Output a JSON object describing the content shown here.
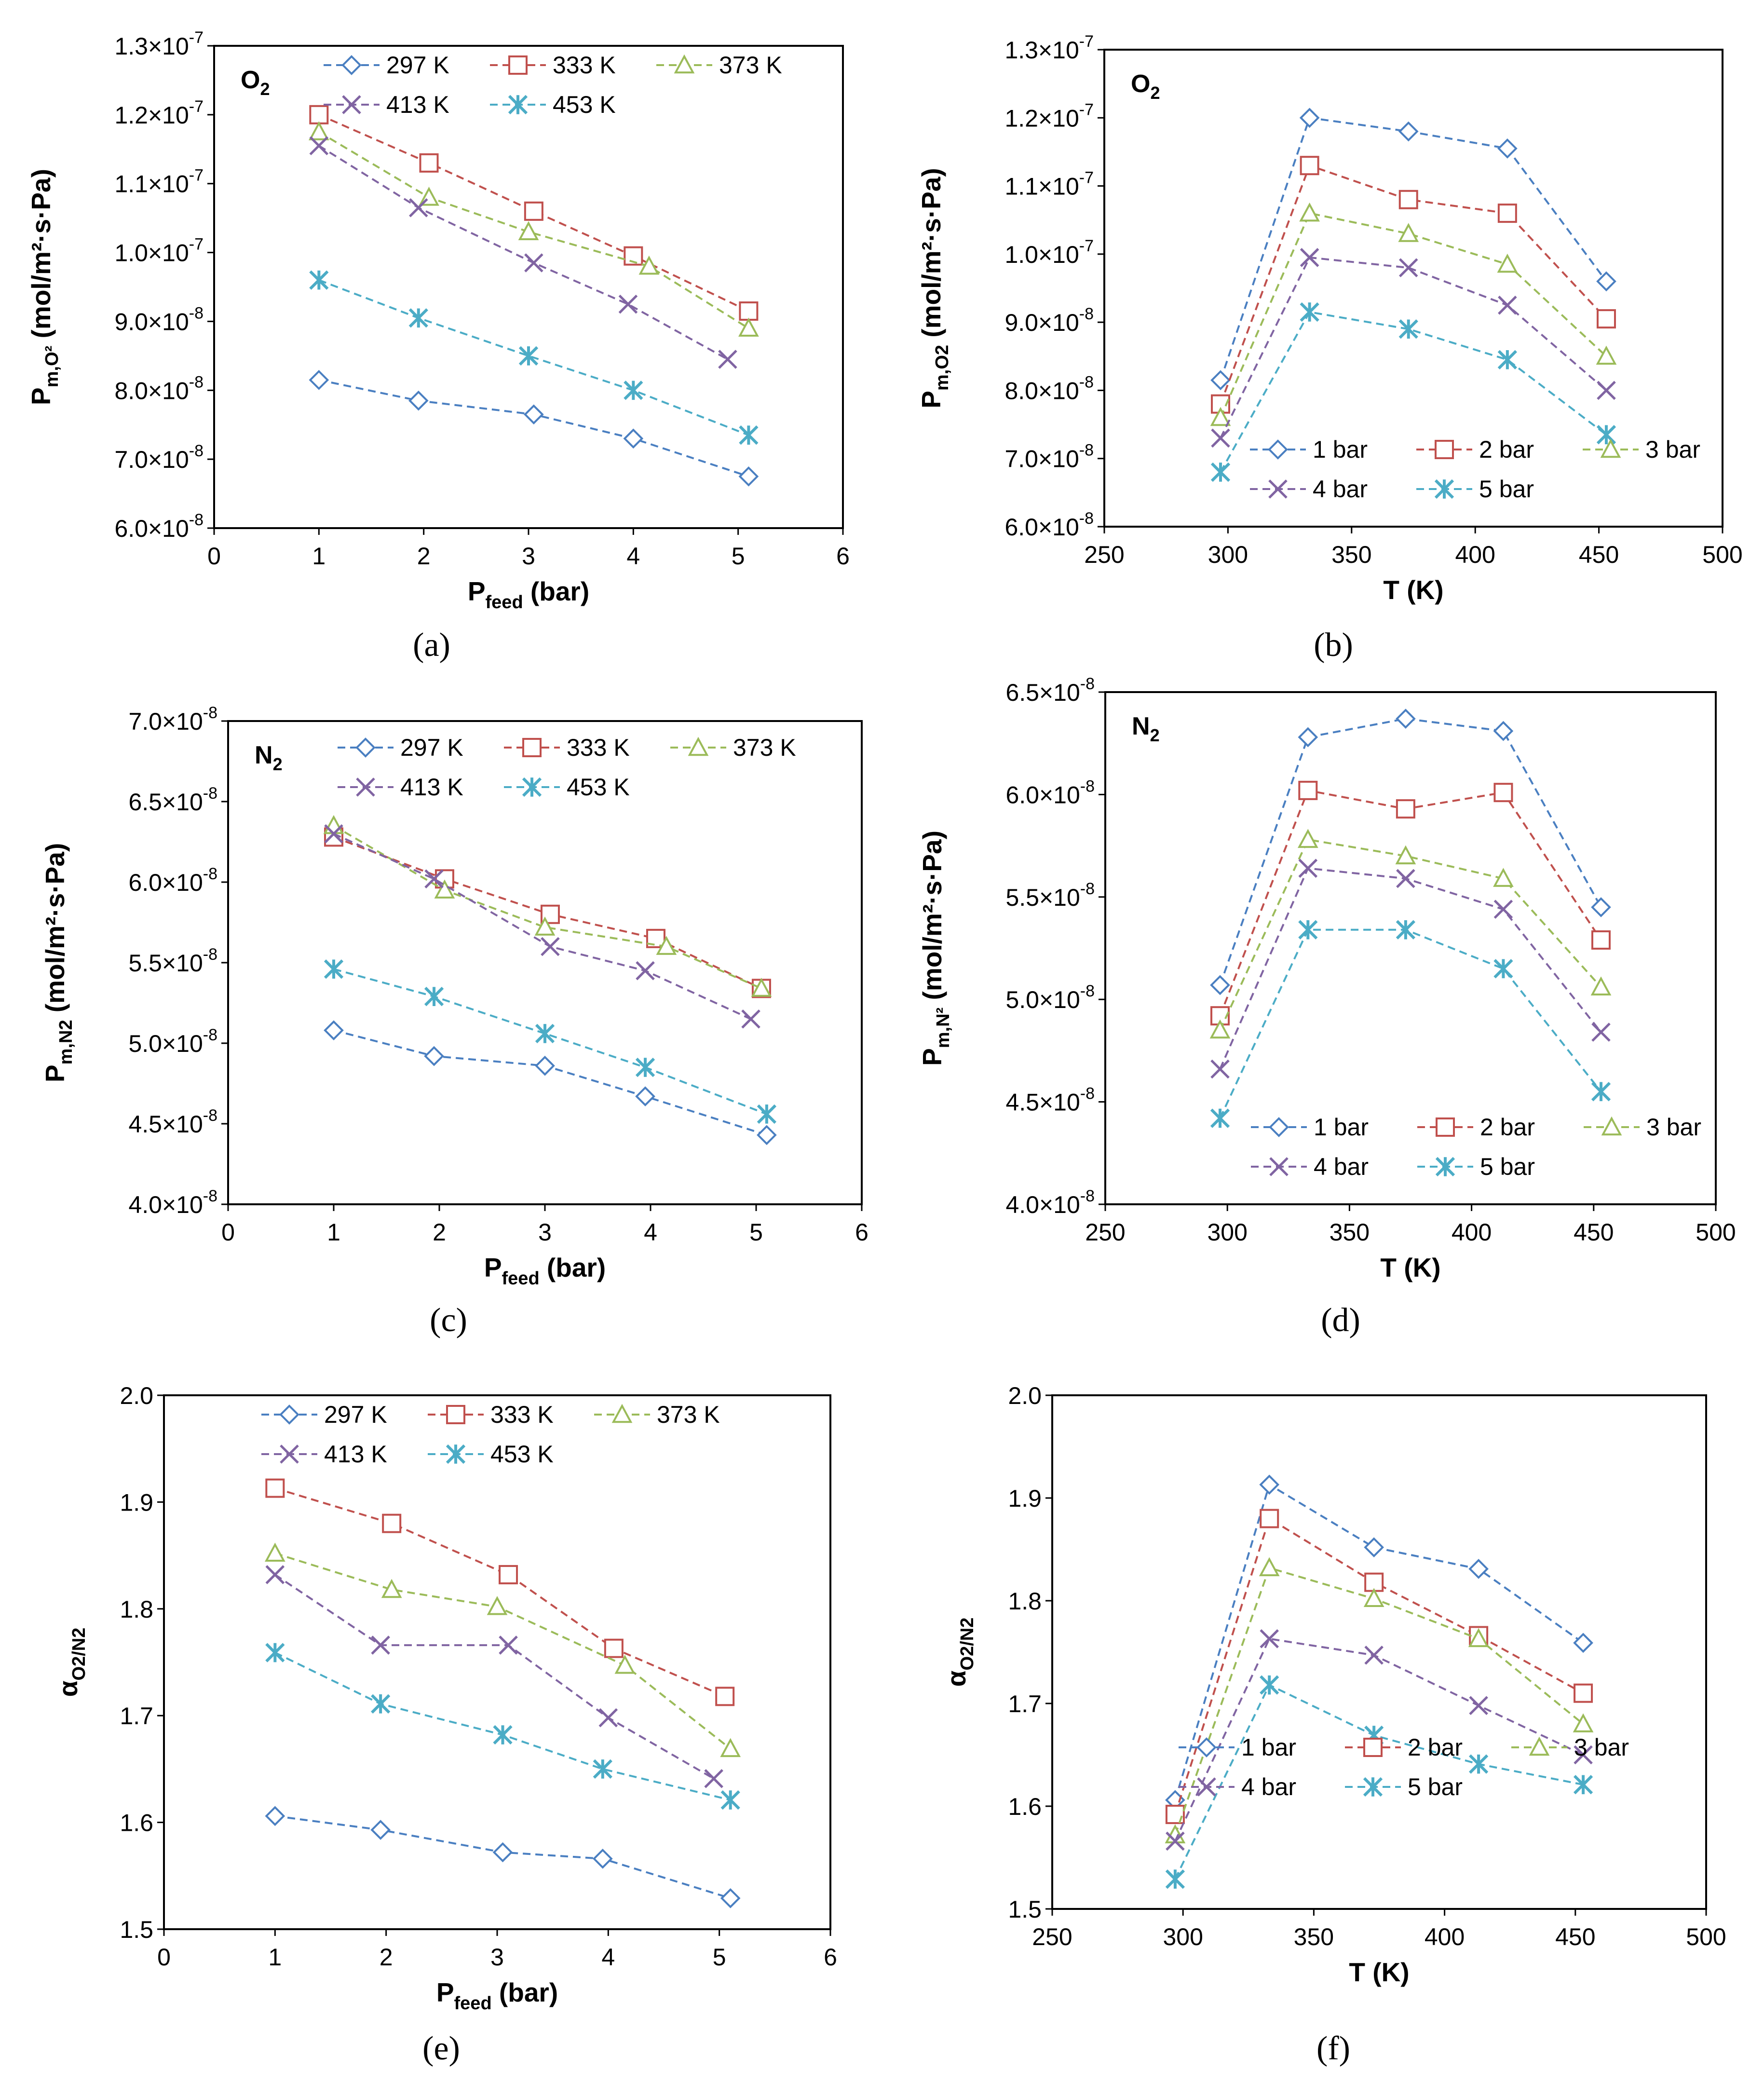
{
  "figure": {
    "panels": [
      {
        "caption": "(a)",
        "corner_label": "O",
        "corner_sub": "2",
        "xlabel_main": "P",
        "xlabel_sub": "feed",
        "xlabel_tail": " (bar)",
        "ylabel_main": "P",
        "ylabel_sub": "m,O²",
        "ylabel_tail": " (mol/m²·s·Pa)"
      },
      {
        "caption": "(b)",
        "corner_label": "O",
        "corner_sub": "2",
        "xlabel_main": "T (K)",
        "xlabel_sub": "",
        "xlabel_tail": "",
        "ylabel_main": "P",
        "ylabel_sub": "m,O2",
        "ylabel_tail": " (mol/m²·s·Pa)"
      },
      {
        "caption": "(c)",
        "corner_label": "N",
        "corner_sub": "2",
        "xlabel_main": "P",
        "xlabel_sub": "feed",
        "xlabel_tail": " (bar)",
        "ylabel_main": "P",
        "ylabel_sub": "m,N2",
        "ylabel_tail": " (mol/m²·s·Pa)"
      },
      {
        "caption": "(d)",
        "corner_label": "N",
        "corner_sub": "2",
        "xlabel_main": "T (K)",
        "xlabel_sub": "",
        "xlabel_tail": "",
        "ylabel_main": "P",
        "ylabel_sub": "m,N²",
        "ylabel_tail": " (mol/m²·s·Pa)"
      },
      {
        "caption": "(e)",
        "corner_label": "",
        "corner_sub": "",
        "xlabel_main": "P",
        "xlabel_sub": "feed",
        "xlabel_tail": " (bar)",
        "ylabel_main": "α",
        "ylabel_sub": "O2/N2",
        "ylabel_tail": ""
      },
      {
        "caption": "(f)",
        "corner_label": "",
        "corner_sub": "",
        "xlabel_main": "T (K)",
        "xlabel_sub": "",
        "xlabel_tail": "",
        "ylabel_main": "α",
        "ylabel_sub": "O2/N2",
        "ylabel_tail": ""
      }
    ]
  },
  "series_styles": {
    "colors": [
      "#4a7fc1",
      "#c0504d",
      "#9bbb59",
      "#8064a2",
      "#4bacc6"
    ],
    "markers": [
      "diamond",
      "square",
      "triangle",
      "x",
      "asterisk"
    ]
  },
  "chart_data": [
    {
      "type": "line",
      "title": "O2",
      "xlabel": "Pfeed (bar)",
      "ylabel": "Pm,O2 (mol/m²·s·Pa)",
      "xlim": [
        0,
        6
      ],
      "ylim": [
        6e-08,
        1.3e-07
      ],
      "xticks": [
        "0",
        "1",
        "2",
        "3",
        "4",
        "5",
        "6"
      ],
      "yticks": [
        {
          "mant": "6.0×10",
          "exp": "-8"
        },
        {
          "mant": "7.0×10",
          "exp": "-8"
        },
        {
          "mant": "8.0×10",
          "exp": "-8"
        },
        {
          "mant": "9.0×10",
          "exp": "-8"
        },
        {
          "mant": "1.0×10",
          "exp": "-7"
        },
        {
          "mant": "1.1×10",
          "exp": "-7"
        },
        {
          "mant": "1.2×10",
          "exp": "-7"
        },
        {
          "mant": "1.3×10",
          "exp": "-7"
        }
      ],
      "legend_position": "top",
      "series": [
        {
          "name": "297 K",
          "x": [
            1,
            1.95,
            3.05,
            4,
            5.1
          ],
          "values": [
            8.15e-08,
            7.85e-08,
            7.65e-08,
            7.3e-08,
            6.75e-08
          ]
        },
        {
          "name": "333 K",
          "x": [
            1,
            2.05,
            3.05,
            4,
            5.1
          ],
          "values": [
            1.2e-07,
            1.13e-07,
            1.06e-07,
            9.95e-08,
            9.15e-08
          ]
        },
        {
          "name": "373 K",
          "x": [
            1,
            2.05,
            3,
            4.15,
            5.1
          ],
          "values": [
            1.175e-07,
            1.08e-07,
            1.03e-07,
            9.8e-08,
            8.9e-08
          ]
        },
        {
          "name": "413 K",
          "x": [
            1,
            1.95,
            3.05,
            3.95,
            4.9
          ],
          "values": [
            1.155e-07,
            1.065e-07,
            9.85e-08,
            9.25e-08,
            8.45e-08
          ]
        },
        {
          "name": "453 K",
          "x": [
            1,
            1.95,
            3,
            4,
            5.1
          ],
          "values": [
            9.6e-08,
            9.05e-08,
            8.5e-08,
            8e-08,
            7.35e-08
          ]
        }
      ]
    },
    {
      "type": "line",
      "title": "O2",
      "xlabel": "T (K)",
      "ylabel": "Pm,O2 (mol/m²·s·Pa)",
      "xlim": [
        250,
        500
      ],
      "ylim": [
        6e-08,
        1.3e-07
      ],
      "xticks": [
        "250",
        "300",
        "350",
        "400",
        "450",
        "500"
      ],
      "yticks": [
        {
          "mant": "6.0×10",
          "exp": "-8"
        },
        {
          "mant": "7.0×10",
          "exp": "-8"
        },
        {
          "mant": "8.0×10",
          "exp": "-8"
        },
        {
          "mant": "9.0×10",
          "exp": "-8"
        },
        {
          "mant": "1.0×10",
          "exp": "-7"
        },
        {
          "mant": "1.1×10",
          "exp": "-7"
        },
        {
          "mant": "1.2×10",
          "exp": "-7"
        },
        {
          "mant": "1.3×10",
          "exp": "-7"
        }
      ],
      "legend_position": "bottom",
      "series": [
        {
          "name": "1 bar",
          "x": [
            297,
            333,
            373,
            413,
            453
          ],
          "values": [
            8.15e-08,
            1.2e-07,
            1.18e-07,
            1.155e-07,
            9.6e-08
          ]
        },
        {
          "name": "2 bar",
          "x": [
            297,
            333,
            373,
            413,
            453
          ],
          "values": [
            7.8e-08,
            1.13e-07,
            1.08e-07,
            1.06e-07,
            9.05e-08
          ]
        },
        {
          "name": "3 bar",
          "x": [
            297,
            333,
            373,
            413,
            453
          ],
          "values": [
            7.6e-08,
            1.06e-07,
            1.03e-07,
            9.85e-08,
            8.5e-08
          ]
        },
        {
          "name": "4 bar",
          "x": [
            297,
            333,
            373,
            413,
            453
          ],
          "values": [
            7.3e-08,
            9.95e-08,
            9.8e-08,
            9.25e-08,
            8e-08
          ]
        },
        {
          "name": "5 bar",
          "x": [
            297,
            333,
            373,
            413,
            453
          ],
          "values": [
            6.8e-08,
            9.15e-08,
            8.9e-08,
            8.45e-08,
            7.35e-08
          ]
        }
      ]
    },
    {
      "type": "line",
      "title": "N2",
      "xlabel": "Pfeed (bar)",
      "ylabel": "Pm,N2 (mol/m²·s·Pa)",
      "xlim": [
        0,
        6
      ],
      "ylim": [
        4e-08,
        7e-08
      ],
      "xticks": [
        "0",
        "1",
        "2",
        "3",
        "4",
        "5",
        "6"
      ],
      "yticks": [
        {
          "mant": "4.0×10",
          "exp": "-8"
        },
        {
          "mant": "4.5×10",
          "exp": "-8"
        },
        {
          "mant": "5.0×10",
          "exp": "-8"
        },
        {
          "mant": "5.5×10",
          "exp": "-8"
        },
        {
          "mant": "6.0×10",
          "exp": "-8"
        },
        {
          "mant": "6.5×10",
          "exp": "-8"
        },
        {
          "mant": "7.0×10",
          "exp": "-8"
        }
      ],
      "legend_position": "top",
      "series": [
        {
          "name": "297 K",
          "x": [
            1,
            1.95,
            3,
            3.95,
            5.1
          ],
          "values": [
            5.08e-08,
            4.92e-08,
            4.86e-08,
            4.67e-08,
            4.43e-08
          ]
        },
        {
          "name": "333 K",
          "x": [
            1,
            2.05,
            3.05,
            4.05,
            5.05
          ],
          "values": [
            6.28e-08,
            6.02e-08,
            5.8e-08,
            5.65e-08,
            5.34e-08
          ]
        },
        {
          "name": "373 K",
          "x": [
            1,
            2.05,
            3,
            4.15,
            5.05
          ],
          "values": [
            6.35e-08,
            5.95e-08,
            5.72e-08,
            5.6e-08,
            5.34e-08
          ]
        },
        {
          "name": "413 K",
          "x": [
            1,
            1.95,
            3.05,
            3.95,
            4.95
          ],
          "values": [
            6.3e-08,
            6.02e-08,
            5.6e-08,
            5.45e-08,
            5.15e-08
          ]
        },
        {
          "name": "453 K",
          "x": [
            1,
            1.95,
            3,
            3.95,
            5.1
          ],
          "values": [
            5.46e-08,
            5.29e-08,
            5.06e-08,
            4.85e-08,
            4.56e-08
          ]
        }
      ]
    },
    {
      "type": "line",
      "title": "N2",
      "xlabel": "T (K)",
      "ylabel": "Pm,N2 (mol/m²·s·Pa)",
      "xlim": [
        250,
        500
      ],
      "ylim": [
        4e-08,
        6.5e-08
      ],
      "xticks": [
        "250",
        "300",
        "350",
        "400",
        "450",
        "500"
      ],
      "yticks": [
        {
          "mant": "4.0×10",
          "exp": "-8"
        },
        {
          "mant": "4.5×10",
          "exp": "-8"
        },
        {
          "mant": "5.0×10",
          "exp": "-8"
        },
        {
          "mant": "5.5×10",
          "exp": "-8"
        },
        {
          "mant": "6.0×10",
          "exp": "-8"
        },
        {
          "mant": "6.5×10",
          "exp": "-8"
        }
      ],
      "legend_position": "bottom",
      "series": [
        {
          "name": "1 bar",
          "x": [
            297,
            333,
            373,
            413,
            453
          ],
          "values": [
            5.07e-08,
            6.28e-08,
            6.37e-08,
            6.31e-08,
            5.45e-08
          ]
        },
        {
          "name": "2 bar",
          "x": [
            297,
            333,
            373,
            413,
            453
          ],
          "values": [
            4.92e-08,
            6.02e-08,
            5.93e-08,
            6.01e-08,
            5.29e-08
          ]
        },
        {
          "name": "3 bar",
          "x": [
            297,
            333,
            373,
            413,
            453
          ],
          "values": [
            4.85e-08,
            5.78e-08,
            5.7e-08,
            5.59e-08,
            5.06e-08
          ]
        },
        {
          "name": "4 bar",
          "x": [
            297,
            333,
            373,
            413,
            453
          ],
          "values": [
            4.66e-08,
            5.64e-08,
            5.59e-08,
            5.44e-08,
            4.84e-08
          ]
        },
        {
          "name": "5 bar",
          "x": [
            297,
            333,
            373,
            413,
            453
          ],
          "values": [
            4.42e-08,
            5.34e-08,
            5.34e-08,
            5.15e-08,
            4.55e-08
          ]
        }
      ]
    },
    {
      "type": "line",
      "title": "",
      "xlabel": "Pfeed (bar)",
      "ylabel": "αO2/N2",
      "xlim": [
        0,
        6
      ],
      "ylim": [
        1.5,
        2.0
      ],
      "xticks": [
        "0",
        "1",
        "2",
        "3",
        "4",
        "5",
        "6"
      ],
      "yticks": [
        {
          "mant": "1.5",
          "exp": ""
        },
        {
          "mant": "1.6",
          "exp": ""
        },
        {
          "mant": "1.7",
          "exp": ""
        },
        {
          "mant": "1.8",
          "exp": ""
        },
        {
          "mant": "1.9",
          "exp": ""
        },
        {
          "mant": "2.0",
          "exp": ""
        }
      ],
      "legend_position": "top",
      "series": [
        {
          "name": "297 K",
          "x": [
            1,
            1.95,
            3.05,
            3.95,
            5.1
          ],
          "values": [
            1.606,
            1.593,
            1.572,
            1.566,
            1.529
          ]
        },
        {
          "name": "333 K",
          "x": [
            1,
            2.05,
            3.1,
            4.05,
            5.05
          ],
          "values": [
            1.913,
            1.88,
            1.832,
            1.763,
            1.718
          ]
        },
        {
          "name": "373 K",
          "x": [
            1,
            2.05,
            3,
            4.15,
            5.1
          ],
          "values": [
            1.852,
            1.818,
            1.802,
            1.747,
            1.669
          ]
        },
        {
          "name": "413 K",
          "x": [
            1,
            1.95,
            3.1,
            4,
            4.95
          ],
          "values": [
            1.832,
            1.766,
            1.766,
            1.698,
            1.641
          ]
        },
        {
          "name": "453 K",
          "x": [
            1,
            1.95,
            3.05,
            3.95,
            5.1
          ],
          "values": [
            1.759,
            1.711,
            1.682,
            1.65,
            1.621
          ]
        }
      ]
    },
    {
      "type": "line",
      "title": "",
      "xlabel": "T (K)",
      "ylabel": "αO2/N2",
      "xlim": [
        250,
        500
      ],
      "ylim": [
        1.5,
        2.0
      ],
      "xticks": [
        "250",
        "300",
        "350",
        "400",
        "450",
        "500"
      ],
      "yticks": [
        {
          "mant": "1.5",
          "exp": ""
        },
        {
          "mant": "1.6",
          "exp": ""
        },
        {
          "mant": "1.7",
          "exp": ""
        },
        {
          "mant": "1.8",
          "exp": ""
        },
        {
          "mant": "1.9",
          "exp": ""
        },
        {
          "mant": "2.0",
          "exp": ""
        }
      ],
      "legend_position": "bottom",
      "series": [
        {
          "name": "1 bar",
          "x": [
            297,
            333,
            373,
            413,
            453
          ],
          "values": [
            1.606,
            1.913,
            1.852,
            1.831,
            1.759
          ]
        },
        {
          "name": "2 bar",
          "x": [
            297,
            333,
            373,
            413,
            453
          ],
          "values": [
            1.592,
            1.88,
            1.818,
            1.766,
            1.71
          ]
        },
        {
          "name": "3 bar",
          "x": [
            297,
            333,
            373,
            413,
            453
          ],
          "values": [
            1.572,
            1.832,
            1.802,
            1.763,
            1.68
          ]
        },
        {
          "name": "4 bar",
          "x": [
            297,
            333,
            373,
            413,
            453
          ],
          "values": [
            1.566,
            1.763,
            1.747,
            1.698,
            1.65
          ]
        },
        {
          "name": "5 bar",
          "x": [
            297,
            333,
            373,
            413,
            453
          ],
          "values": [
            1.529,
            1.718,
            1.669,
            1.641,
            1.621
          ]
        }
      ]
    }
  ]
}
